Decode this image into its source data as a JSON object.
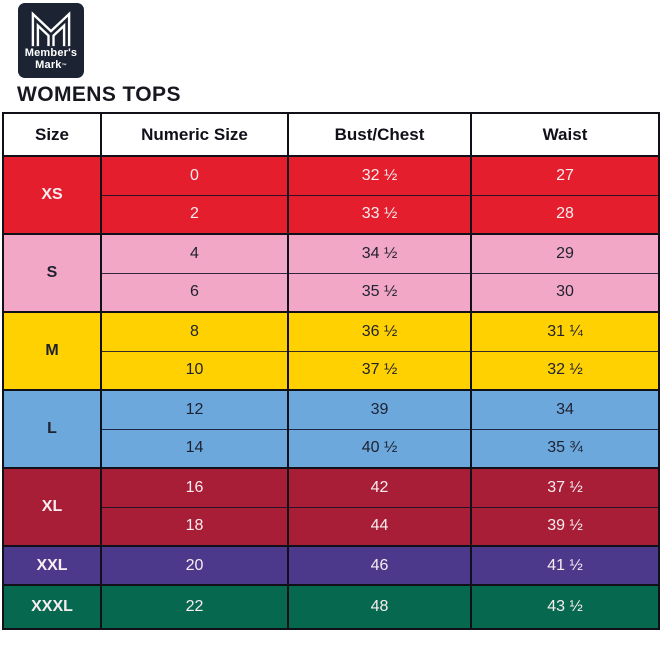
{
  "brand": {
    "logo_line1": "Member's",
    "logo_line2": "Mark",
    "trademark": "™",
    "logo_bg": "#1C2433"
  },
  "page": {
    "title": "WOMENS TOPS"
  },
  "table": {
    "headers": [
      "Size",
      "Numeric Size",
      "Bust/Chest",
      "Waist"
    ],
    "border_color": "#101018",
    "dark_text": "#1E2130",
    "light_text": "#F8EDF0",
    "groups": [
      {
        "label": "XS",
        "color": "#E41E2C",
        "text": "light",
        "rows": [
          [
            "0",
            "32 ½",
            "27"
          ],
          [
            "2",
            "33 ½",
            "28"
          ]
        ]
      },
      {
        "label": "S",
        "color": "#F2A7C6",
        "text": "dark",
        "rows": [
          [
            "4",
            "34 ½",
            "29"
          ],
          [
            "6",
            "35 ½",
            "30"
          ]
        ]
      },
      {
        "label": "M",
        "color": "#FFD100",
        "text": "dark",
        "rows": [
          [
            "8",
            "36 ½",
            "31 ¼"
          ],
          [
            "10",
            "37 ½",
            "32 ½"
          ]
        ]
      },
      {
        "label": "L",
        "color": "#6CA8DC",
        "text": "dark",
        "rows": [
          [
            "12",
            "39",
            "34"
          ],
          [
            "14",
            "40 ½",
            "35 ¾"
          ]
        ]
      },
      {
        "label": "XL",
        "color": "#A81E37",
        "text": "light",
        "rows": [
          [
            "16",
            "42",
            "37 ½"
          ],
          [
            "18",
            "44",
            "39 ½"
          ]
        ]
      },
      {
        "label": "XXL",
        "color": "#4D398C",
        "text": "light",
        "rows": [
          [
            "20",
            "46",
            "41 ½"
          ]
        ]
      },
      {
        "label": "XXXL",
        "color": "#06694F",
        "text": "light",
        "rows": [
          [
            "22",
            "48",
            "43 ½"
          ]
        ]
      }
    ]
  },
  "chart_data": {
    "type": "table",
    "title": "WOMENS TOPS",
    "columns": [
      "Size",
      "Numeric Size",
      "Bust/Chest",
      "Waist"
    ],
    "rows": [
      [
        "XS",
        "0",
        "32 ½",
        "27"
      ],
      [
        "XS",
        "2",
        "33 ½",
        "28"
      ],
      [
        "S",
        "4",
        "34 ½",
        "29"
      ],
      [
        "S",
        "6",
        "35 ½",
        "30"
      ],
      [
        "M",
        "8",
        "36 ½",
        "31 ¼"
      ],
      [
        "M",
        "10",
        "37 ½",
        "32 ½"
      ],
      [
        "L",
        "12",
        "39",
        "34"
      ],
      [
        "L",
        "14",
        "40 ½",
        "35 ¾"
      ],
      [
        "XL",
        "16",
        "42",
        "37 ½"
      ],
      [
        "XL",
        "18",
        "44",
        "39 ½"
      ],
      [
        "XXL",
        "20",
        "46",
        "41 ½"
      ],
      [
        "XXXL",
        "22",
        "48",
        "43 ½"
      ]
    ],
    "row_colors": {
      "XS": "#E41E2C",
      "S": "#F2A7C6",
      "M": "#FFD100",
      "L": "#6CA8DC",
      "XL": "#A81E37",
      "XXL": "#4D398C",
      "XXXL": "#06694F"
    }
  }
}
